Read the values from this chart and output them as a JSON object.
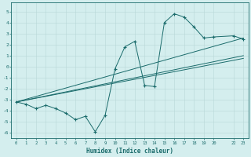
{
  "xlabel": "Humidex (Indice chaleur)",
  "background_color": "#d4eeee",
  "grid_color": "#b8d8d8",
  "line_color": "#1a6b6b",
  "ylim": [
    -6.5,
    5.8
  ],
  "xlim": [
    -0.5,
    23.5
  ],
  "x_wiggly": [
    0,
    1,
    2,
    3,
    4,
    5,
    6,
    7,
    8,
    9,
    10,
    11,
    12,
    13,
    14,
    15,
    16,
    17,
    18,
    19,
    20,
    22,
    23
  ],
  "y_wiggly": [
    -3.2,
    -3.4,
    -3.8,
    -3.5,
    -3.8,
    -4.2,
    -4.8,
    -4.5,
    -5.9,
    -4.4,
    -0.2,
    1.8,
    2.3,
    -1.7,
    -1.8,
    4.0,
    4.8,
    4.5,
    3.6,
    2.6,
    2.7,
    2.8,
    2.5
  ],
  "straight_lines": [
    [
      0,
      -3.2,
      23,
      2.6
    ],
    [
      0,
      -3.2,
      23,
      1.0
    ],
    [
      0,
      -3.2,
      23,
      0.75
    ]
  ],
  "yticks": [
    -6,
    -5,
    -4,
    -3,
    -2,
    -1,
    0,
    1,
    2,
    3,
    4,
    5
  ],
  "xticks": [
    0,
    1,
    2,
    3,
    4,
    5,
    6,
    7,
    8,
    9,
    10,
    11,
    12,
    13,
    14,
    15,
    16,
    17,
    18,
    19,
    20,
    22,
    23
  ]
}
